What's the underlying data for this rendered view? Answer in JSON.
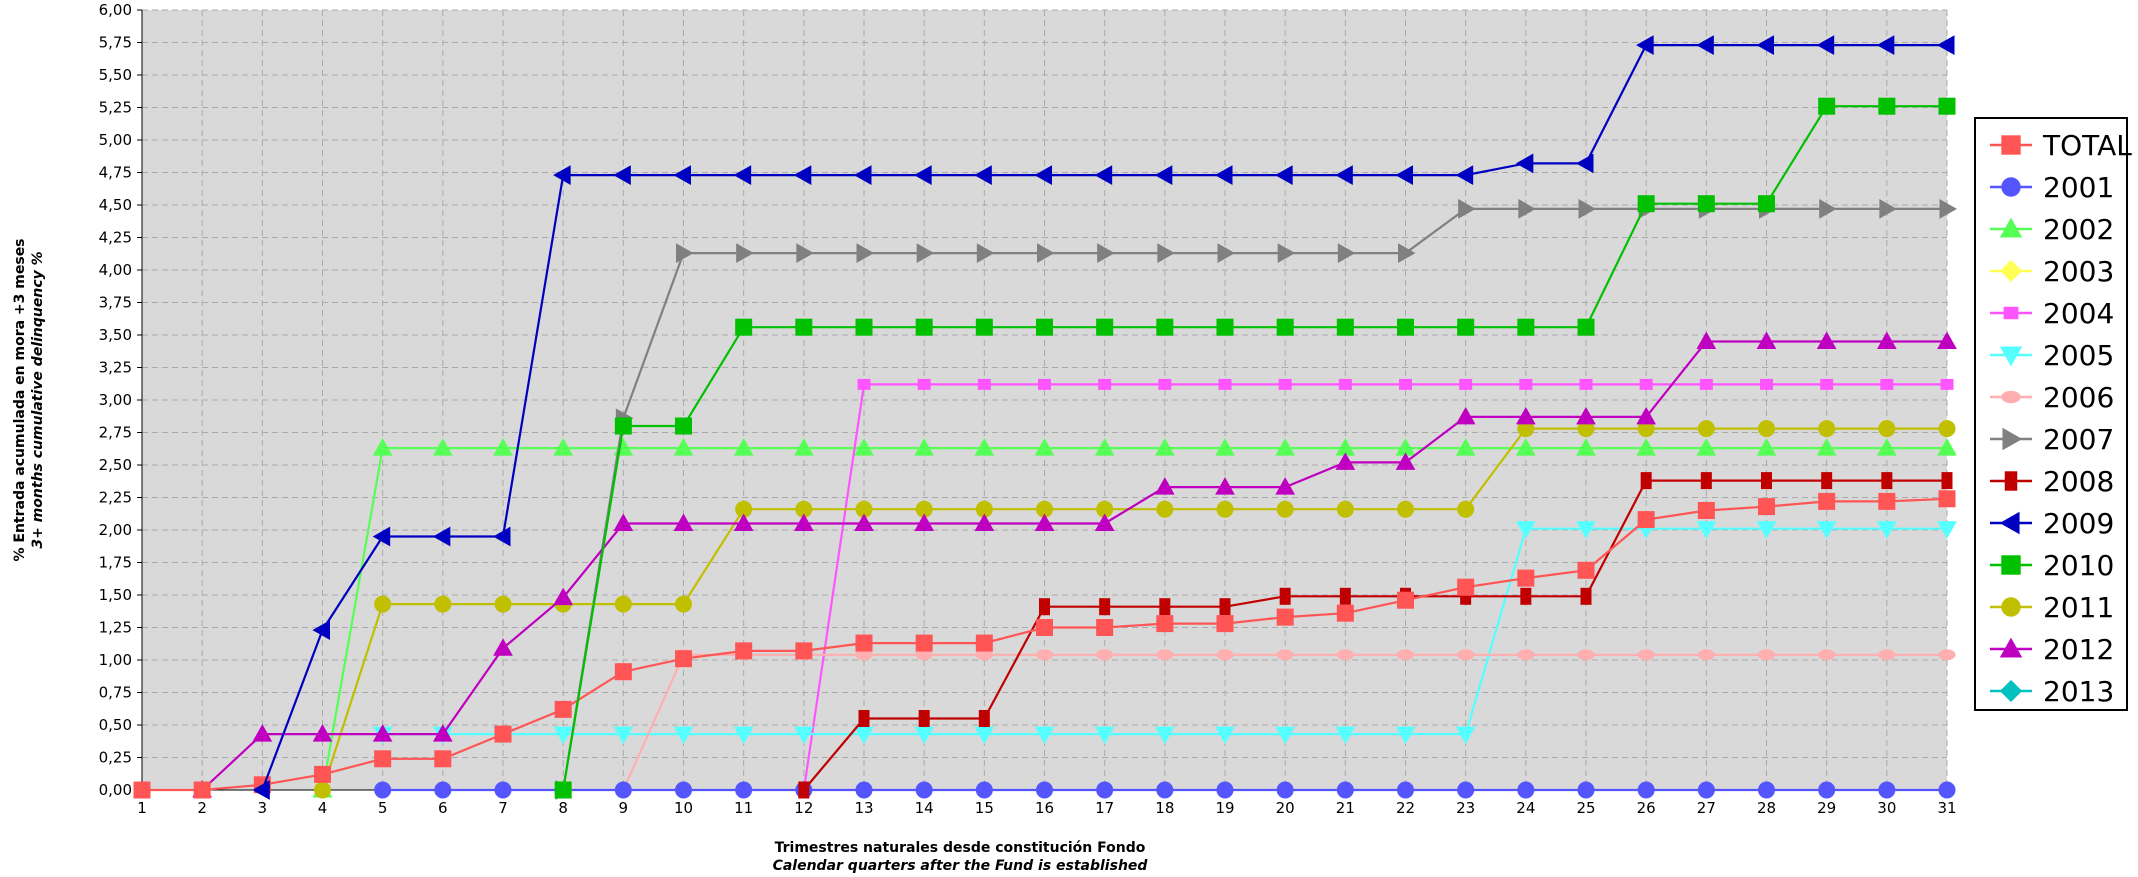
{
  "chart_data": {
    "type": "line",
    "title": "",
    "xlabel": "Trimestres naturales desde constitución Fondo",
    "xlabel_en": "Calendar quarters after the Fund is established",
    "ylabel": "% Entrada acumulada en mora +3 meses",
    "ylabel_en": "3+ months cumulative delinquency %",
    "xlim": [
      1,
      31
    ],
    "ylim": [
      0,
      6
    ],
    "x_ticks": [
      1,
      2,
      3,
      4,
      5,
      6,
      7,
      8,
      9,
      10,
      11,
      12,
      13,
      14,
      15,
      16,
      17,
      18,
      19,
      20,
      21,
      22,
      23,
      24,
      25,
      26,
      27,
      28,
      29,
      30,
      31
    ],
    "y_ticks": [
      "0,00",
      "0,25",
      "0,50",
      "0,75",
      "1,00",
      "1,25",
      "1,50",
      "1,75",
      "2,00",
      "2,25",
      "2,50",
      "2,75",
      "3,00",
      "3,25",
      "3,50",
      "3,75",
      "4,00",
      "4,25",
      "4,50",
      "4,75",
      "5,00",
      "5,25",
      "5,50",
      "5,75",
      "6,00"
    ],
    "grid": true,
    "legend_position": "right",
    "series": [
      {
        "name": "TOTAL",
        "color": "#ff5555",
        "marker": "square",
        "x": [
          1,
          2,
          3,
          4,
          5,
          6,
          7,
          8,
          9,
          10,
          11,
          12,
          13,
          14,
          15,
          16,
          17,
          18,
          19,
          20,
          21,
          22,
          23,
          24,
          25,
          26,
          27,
          28,
          29,
          30,
          31
        ],
        "y": [
          0,
          0,
          0.04,
          0.12,
          0.24,
          0.24,
          0.43,
          0.62,
          0.91,
          1.01,
          1.07,
          1.07,
          1.13,
          1.13,
          1.13,
          1.25,
          1.25,
          1.28,
          1.28,
          1.33,
          1.36,
          1.46,
          1.56,
          1.63,
          1.69,
          2.08,
          2.15,
          2.18,
          2.22,
          2.22,
          2.24
        ]
      },
      {
        "name": "2001",
        "color": "#5555ff",
        "marker": "circle",
        "x": [
          5,
          6,
          7,
          8,
          9,
          10,
          11,
          12,
          13,
          14,
          15,
          16,
          17,
          18,
          19,
          20,
          21,
          22,
          23,
          24,
          25,
          26,
          27,
          28,
          29,
          30,
          31
        ],
        "y": [
          0,
          0,
          0,
          0,
          0,
          0,
          0,
          0,
          0,
          0,
          0,
          0,
          0,
          0,
          0,
          0,
          0,
          0,
          0,
          0,
          0,
          0,
          0,
          0,
          0,
          0,
          0
        ]
      },
      {
        "name": "2002",
        "color": "#55ff55",
        "marker": "triangle-up",
        "x": [
          4,
          5,
          6,
          7,
          8,
          9,
          10,
          11,
          12,
          13,
          14,
          15,
          16,
          17,
          18,
          19,
          20,
          21,
          22,
          23,
          24,
          25,
          26,
          27,
          28,
          29,
          30,
          31
        ],
        "y": [
          0,
          2.63,
          2.63,
          2.63,
          2.63,
          2.63,
          2.63,
          2.63,
          2.63,
          2.63,
          2.63,
          2.63,
          2.63,
          2.63,
          2.63,
          2.63,
          2.63,
          2.63,
          2.63,
          2.63,
          2.63,
          2.63,
          2.63,
          2.63,
          2.63,
          2.63,
          2.63,
          2.63
        ]
      },
      {
        "name": "2003",
        "color": "#ffff55",
        "marker": "diamond",
        "x": [],
        "y": []
      },
      {
        "name": "2004",
        "color": "#ff55ff",
        "marker": "square-small",
        "x": [
          12,
          13,
          14,
          15,
          16,
          17,
          18,
          19,
          20,
          21,
          22,
          23,
          24,
          25,
          26,
          27,
          28,
          29,
          30,
          31
        ],
        "y": [
          0,
          3.12,
          3.12,
          3.12,
          3.12,
          3.12,
          3.12,
          3.12,
          3.12,
          3.12,
          3.12,
          3.12,
          3.12,
          3.12,
          3.12,
          3.12,
          3.12,
          3.12,
          3.12,
          3.12
        ]
      },
      {
        "name": "2005",
        "color": "#55ffff",
        "marker": "triangle-down",
        "x": [
          5,
          6,
          7,
          8,
          9,
          10,
          11,
          12,
          13,
          14,
          15,
          16,
          17,
          18,
          19,
          20,
          21,
          22,
          23,
          24,
          25,
          26,
          27,
          28,
          29,
          30,
          31
        ],
        "y": [
          0.43,
          0.43,
          0.43,
          0.43,
          0.43,
          0.43,
          0.43,
          0.43,
          0.43,
          0.43,
          0.43,
          0.43,
          0.43,
          0.43,
          0.43,
          0.43,
          0.43,
          0.43,
          0.43,
          2.01,
          2.01,
          2.01,
          2.01,
          2.01,
          2.01,
          2.01,
          2.01
        ]
      },
      {
        "name": "2006",
        "color": "#ffafaf",
        "marker": "ellipse",
        "x": [
          9,
          10,
          11,
          12,
          13,
          14,
          15,
          16,
          17,
          18,
          19,
          20,
          21,
          22,
          23,
          24,
          25,
          26,
          27,
          28,
          29,
          30,
          31
        ],
        "y": [
          0,
          1.04,
          1.04,
          1.04,
          1.04,
          1.04,
          1.04,
          1.04,
          1.04,
          1.04,
          1.04,
          1.04,
          1.04,
          1.04,
          1.04,
          1.04,
          1.04,
          1.04,
          1.04,
          1.04,
          1.04,
          1.04,
          1.04
        ]
      },
      {
        "name": "2007",
        "color": "#808080",
        "marker": "triangle-right",
        "x": [
          8,
          9,
          10,
          11,
          12,
          13,
          14,
          15,
          16,
          17,
          18,
          19,
          20,
          21,
          22,
          23,
          24,
          25,
          26,
          27,
          28,
          29,
          30,
          31
        ],
        "y": [
          0,
          2.86,
          4.13,
          4.13,
          4.13,
          4.13,
          4.13,
          4.13,
          4.13,
          4.13,
          4.13,
          4.13,
          4.13,
          4.13,
          4.13,
          4.47,
          4.47,
          4.47,
          4.47,
          4.47,
          4.47,
          4.47,
          4.47,
          4.47
        ]
      },
      {
        "name": "2008",
        "color": "#c00000",
        "marker": "rect-tall",
        "x": [
          12,
          13,
          14,
          15,
          16,
          17,
          18,
          19,
          20,
          21,
          22,
          23,
          24,
          25,
          26,
          27,
          28,
          29,
          30,
          31
        ],
        "y": [
          0,
          0.55,
          0.55,
          0.55,
          1.41,
          1.41,
          1.41,
          1.41,
          1.49,
          1.49,
          1.49,
          1.49,
          1.49,
          1.49,
          2.38,
          2.38,
          2.38,
          2.38,
          2.38,
          2.38
        ]
      },
      {
        "name": "2009",
        "color": "#0000c0",
        "marker": "triangle-left",
        "x": [
          3,
          4,
          5,
          6,
          7,
          8,
          9,
          10,
          11,
          12,
          13,
          14,
          15,
          16,
          17,
          18,
          19,
          20,
          21,
          22,
          23,
          24,
          25,
          26,
          27,
          28,
          29,
          30,
          31
        ],
        "y": [
          0,
          1.23,
          1.95,
          1.95,
          1.95,
          4.73,
          4.73,
          4.73,
          4.73,
          4.73,
          4.73,
          4.73,
          4.73,
          4.73,
          4.73,
          4.73,
          4.73,
          4.73,
          4.73,
          4.73,
          4.73,
          4.82,
          4.82,
          5.73,
          5.73,
          5.73,
          5.73,
          5.73,
          5.73
        ]
      },
      {
        "name": "2010",
        "color": "#00c000",
        "marker": "square",
        "x": [
          8,
          9,
          10,
          11,
          12,
          13,
          14,
          15,
          16,
          17,
          18,
          19,
          20,
          21,
          22,
          23,
          24,
          25,
          26,
          27,
          28,
          29,
          30,
          31
        ],
        "y": [
          0,
          2.8,
          2.8,
          3.56,
          3.56,
          3.56,
          3.56,
          3.56,
          3.56,
          3.56,
          3.56,
          3.56,
          3.56,
          3.56,
          3.56,
          3.56,
          3.56,
          3.56,
          4.51,
          4.51,
          4.51,
          5.26,
          5.26,
          5.26
        ]
      },
      {
        "name": "2011",
        "color": "#c0c000",
        "marker": "circle",
        "x": [
          4,
          5,
          6,
          7,
          8,
          9,
          10,
          11,
          12,
          13,
          14,
          15,
          16,
          17,
          18,
          19,
          20,
          21,
          22,
          23,
          24,
          25,
          26,
          27,
          28,
          29,
          30,
          31
        ],
        "y": [
          0,
          1.43,
          1.43,
          1.43,
          1.43,
          1.43,
          1.43,
          2.16,
          2.16,
          2.16,
          2.16,
          2.16,
          2.16,
          2.16,
          2.16,
          2.16,
          2.16,
          2.16,
          2.16,
          2.16,
          2.78,
          2.78,
          2.78,
          2.78,
          2.78,
          2.78,
          2.78,
          2.78
        ]
      },
      {
        "name": "2012",
        "color": "#c000c0",
        "marker": "triangle-up",
        "x": [
          2,
          3,
          4,
          5,
          6,
          7,
          8,
          9,
          10,
          11,
          12,
          13,
          14,
          15,
          16,
          17,
          18,
          19,
          20,
          21,
          22,
          23,
          24,
          25,
          26,
          27,
          28,
          29,
          30,
          31
        ],
        "y": [
          0,
          0.43,
          0.43,
          0.43,
          0.43,
          1.09,
          1.48,
          2.05,
          2.05,
          2.05,
          2.05,
          2.05,
          2.05,
          2.05,
          2.05,
          2.05,
          2.33,
          2.33,
          2.33,
          2.52,
          2.52,
          2.87,
          2.87,
          2.87,
          2.87,
          3.45,
          3.45,
          3.45,
          3.45,
          3.45
        ]
      },
      {
        "name": "2013",
        "color": "#00c0c0",
        "marker": "diamond",
        "x": [],
        "y": []
      }
    ]
  }
}
